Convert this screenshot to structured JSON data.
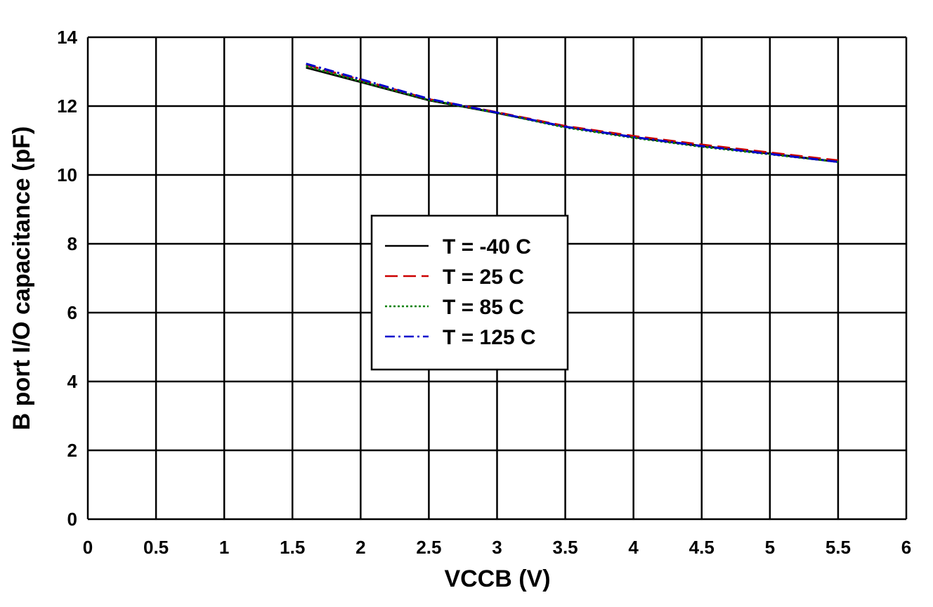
{
  "chart_data": {
    "type": "line",
    "title": "",
    "xlabel": "VCCB (V)",
    "ylabel": "B port I/O capacitance (pF)",
    "xlim": [
      0,
      6
    ],
    "ylim": [
      0,
      14
    ],
    "xticks": [
      "0",
      "0.5",
      "1",
      "1.5",
      "2",
      "2.5",
      "3",
      "3.5",
      "4",
      "4.5",
      "5",
      "5.5",
      "6"
    ],
    "yticks": [
      "0",
      "2",
      "4",
      "6",
      "8",
      "10",
      "12",
      "14"
    ],
    "grid": true,
    "legend_position": "center",
    "x": [
      1.6,
      2.0,
      2.5,
      3.0,
      3.5,
      4.0,
      4.5,
      5.0,
      5.5
    ],
    "series": [
      {
        "name": "T = -40 C",
        "color": "#000000",
        "dash": "solid",
        "values": [
          13.12,
          12.7,
          12.17,
          11.8,
          11.4,
          11.1,
          10.84,
          10.62,
          10.38
        ]
      },
      {
        "name": "T = 25 C",
        "color": "#cc0000",
        "dash": "dash",
        "values": [
          13.2,
          12.76,
          12.2,
          11.82,
          11.42,
          11.13,
          10.88,
          10.65,
          10.42
        ]
      },
      {
        "name": "T = 85 C",
        "color": "#008000",
        "dash": "dot",
        "values": [
          13.16,
          12.72,
          12.18,
          11.8,
          11.38,
          11.08,
          10.82,
          10.6,
          10.38
        ]
      },
      {
        "name": "T = 125 C",
        "color": "#0000cc",
        "dash": "dashdot",
        "values": [
          13.23,
          12.78,
          12.21,
          11.81,
          11.4,
          11.1,
          10.84,
          10.61,
          10.38
        ]
      }
    ]
  }
}
